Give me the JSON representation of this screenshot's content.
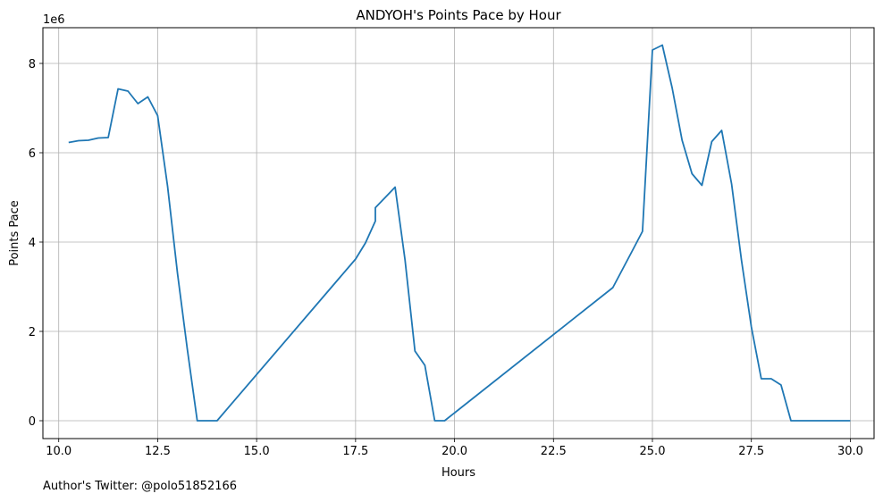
{
  "chart_data": {
    "type": "line",
    "title": "ANDYOH's Points Pace by Hour",
    "xlabel": "Hours",
    "ylabel": "Points Pace",
    "y_offset_label": "1e6",
    "xlim": [
      9.6,
      30.6
    ],
    "ylim": [
      -400000,
      8800000
    ],
    "xticks": [
      10.0,
      12.5,
      15.0,
      17.5,
      20.0,
      22.5,
      25.0,
      27.5,
      30.0
    ],
    "xtick_labels": [
      "10.0",
      "12.5",
      "15.0",
      "17.5",
      "20.0",
      "22.5",
      "25.0",
      "27.5",
      "30.0"
    ],
    "yticks": [
      0,
      2000000,
      4000000,
      6000000,
      8000000
    ],
    "ytick_labels": [
      "0",
      "2",
      "4",
      "6",
      "8"
    ],
    "grid": true,
    "series": [
      {
        "color": "#1f77b4",
        "x": [
          10.25,
          10.5,
          10.75,
          11.0,
          11.25,
          11.5,
          11.75,
          12.0,
          12.25,
          12.5,
          12.75,
          13.0,
          13.25,
          13.5,
          13.75,
          14.0,
          17.5,
          17.75,
          18.0,
          18.0,
          18.25,
          18.5,
          18.75,
          19.0,
          19.25,
          19.5,
          19.75,
          24.0,
          24.25,
          24.5,
          24.75,
          25.0,
          25.25,
          25.5,
          25.75,
          26.0,
          26.25,
          26.5,
          26.75,
          27.0,
          27.25,
          27.5,
          27.75,
          28.0,
          28.25,
          28.5,
          29.0,
          29.5,
          30.0
        ],
        "y": [
          6230000,
          6270000,
          6280000,
          6330000,
          6340000,
          7430000,
          7380000,
          7100000,
          7250000,
          6830000,
          5250000,
          3300000,
          1600000,
          0,
          0,
          0,
          3620000,
          3980000,
          4470000,
          4770000,
          5000000,
          5230000,
          3600000,
          1560000,
          1240000,
          0,
          0,
          2980000,
          3400000,
          3820000,
          4240000,
          8300000,
          8410000,
          7450000,
          6280000,
          5530000,
          5270000,
          6250000,
          6500000,
          5300000,
          3600000,
          2100000,
          940000,
          940000,
          800000,
          0,
          0,
          0,
          0
        ]
      }
    ]
  },
  "footer": {
    "text": "Author's Twitter: @polo51852166"
  }
}
